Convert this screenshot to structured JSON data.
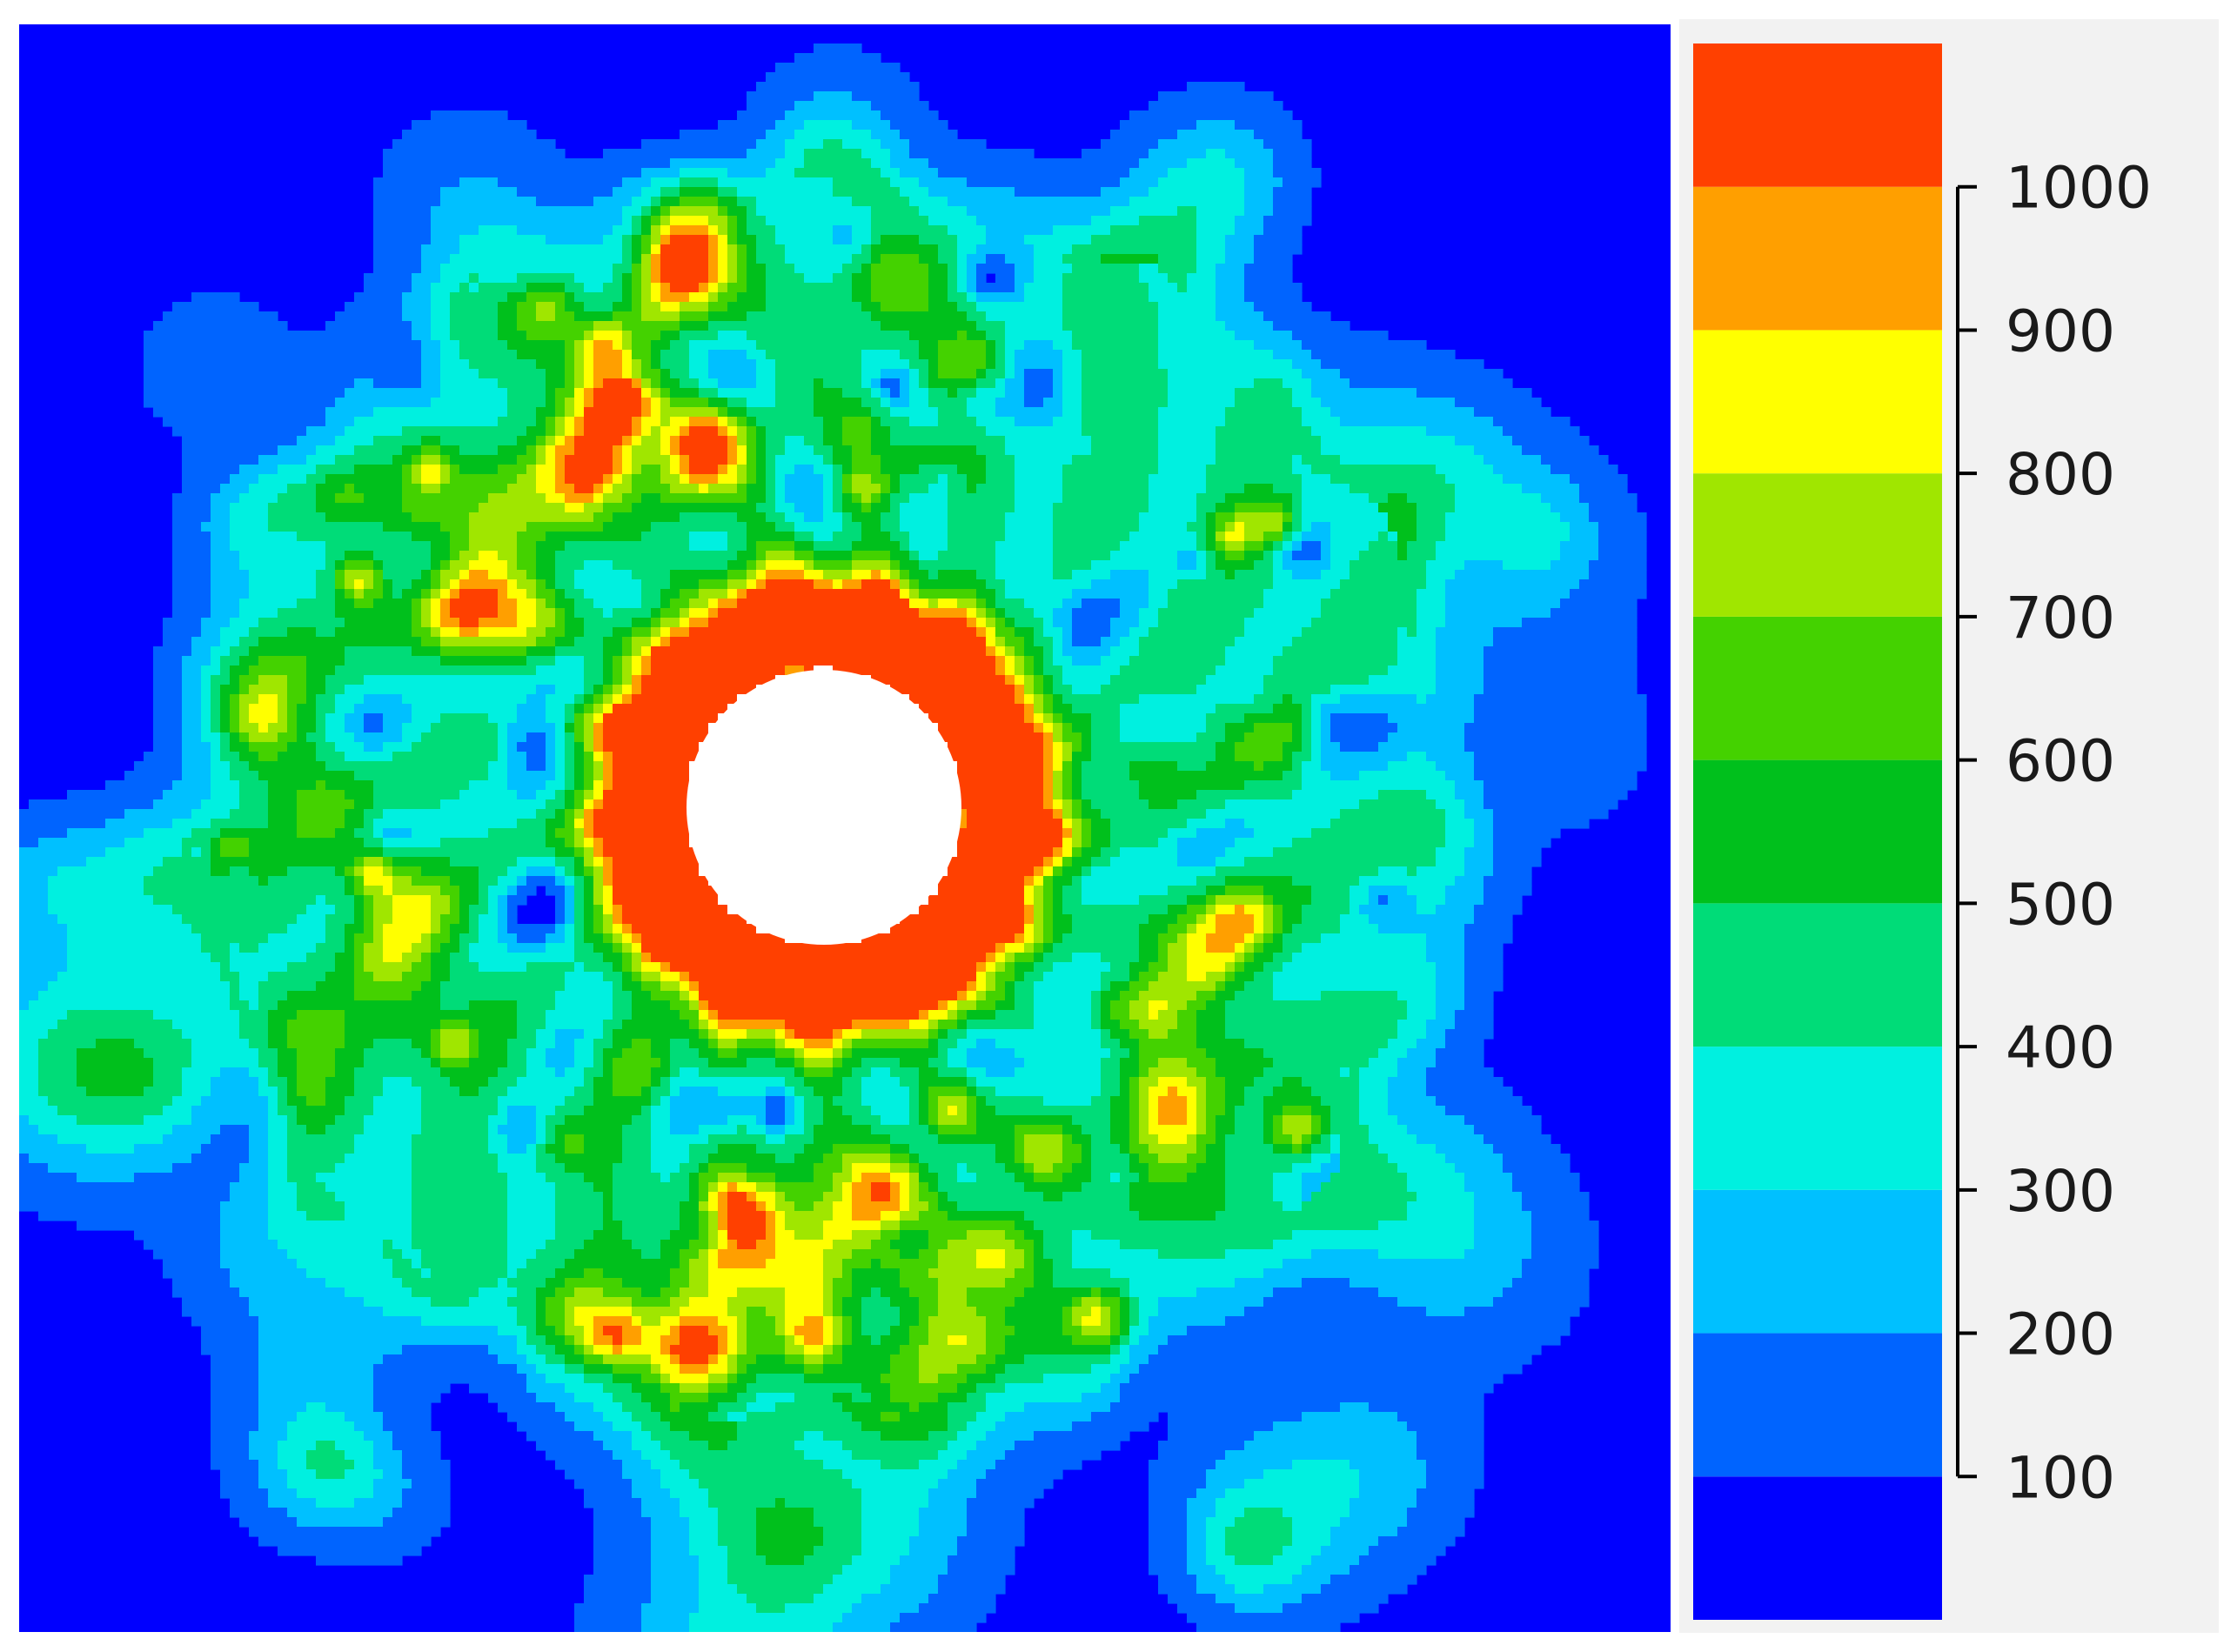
{
  "chart_data": {
    "type": "heatmap",
    "title": "",
    "xlabel": "",
    "ylabel": "",
    "description_pattern": "ring",
    "colorbar": {
      "levels": [
        {
          "min": null,
          "max": 100,
          "color": "#0000ff"
        },
        {
          "min": 100,
          "max": 200,
          "color": "#0064ff"
        },
        {
          "min": 200,
          "max": 300,
          "color": "#00c0ff"
        },
        {
          "min": 300,
          "max": 400,
          "color": "#00f0e0"
        },
        {
          "min": 400,
          "max": 500,
          "color": "#00dc78"
        },
        {
          "min": 500,
          "max": 600,
          "color": "#00c01c"
        },
        {
          "min": 600,
          "max": 700,
          "color": "#44d200"
        },
        {
          "min": 700,
          "max": 800,
          "color": "#a0e600"
        },
        {
          "min": 800,
          "max": 900,
          "color": "#ffff00"
        },
        {
          "min": 900,
          "max": 1000,
          "color": "#ff9f00"
        },
        {
          "min": 1000,
          "max": null,
          "color": "#ff4000"
        }
      ],
      "ticks": [
        {
          "value": 100,
          "label": "100"
        },
        {
          "value": 200,
          "label": "200"
        },
        {
          "value": 300,
          "label": "300"
        },
        {
          "value": 400,
          "label": "400"
        },
        {
          "value": 500,
          "label": "500"
        },
        {
          "value": 600,
          "label": "600"
        },
        {
          "value": 700,
          "label": "700"
        },
        {
          "value": 800,
          "label": "800"
        },
        {
          "value": 900,
          "label": "900"
        },
        {
          "value": 1000,
          "label": "1000"
        }
      ],
      "range": [
        0,
        1100
      ],
      "placement": "right"
    },
    "field": {
      "background_value": 50,
      "hole_color": "#ffffff",
      "inner_ring_peak": 1000,
      "outer_ring_typical": 450,
      "hotspot_peak": 750
    }
  }
}
